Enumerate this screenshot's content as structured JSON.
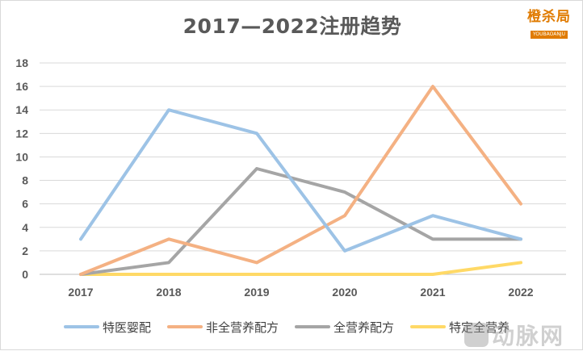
{
  "header": {
    "title": "2017—2022注册趋势",
    "logo_main": "橙杀局",
    "logo_sub": "YOUBAOANJU"
  },
  "watermark": {
    "text": "动脉网"
  },
  "chart_data": {
    "type": "line",
    "title": "2017—2022注册趋势",
    "xlabel": "",
    "ylabel": "",
    "categories": [
      "2017",
      "2018",
      "2019",
      "2020",
      "2021",
      "2022"
    ],
    "ylim": [
      0,
      18
    ],
    "yticks": [
      0,
      2,
      4,
      6,
      8,
      10,
      12,
      14,
      16,
      18
    ],
    "grid": true,
    "legend": "bottom",
    "series": [
      {
        "name": "特医婴配",
        "color": "#9DC3E6",
        "values": [
          3,
          14,
          12,
          2,
          5,
          3
        ]
      },
      {
        "name": "非全营养配方",
        "color": "#F4B183",
        "values": [
          0,
          3,
          1,
          5,
          16,
          6
        ]
      },
      {
        "name": "全营养配方",
        "color": "#A5A5A5",
        "values": [
          0,
          1,
          9,
          7,
          3,
          3
        ]
      },
      {
        "name": "特定全营养",
        "color": "#FFD966",
        "values": [
          0,
          0,
          0,
          0,
          0,
          1
        ]
      }
    ]
  }
}
